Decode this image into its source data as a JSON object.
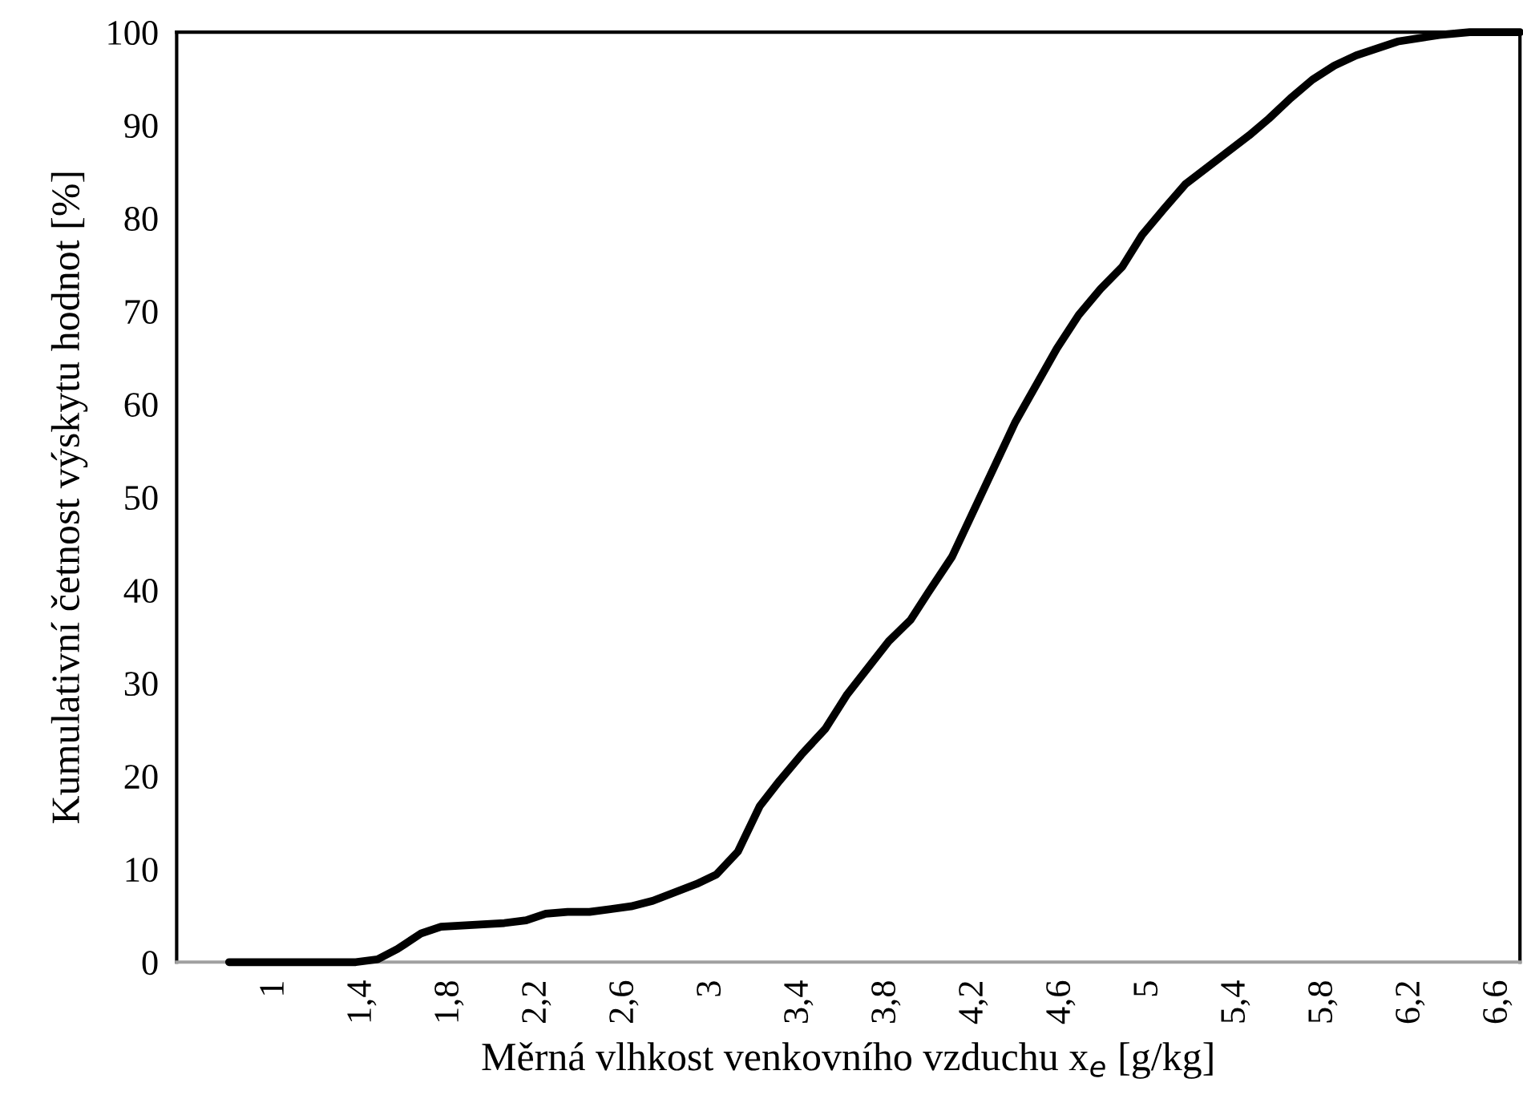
{
  "chart_data": {
    "type": "line",
    "xlabel": "Měrná vlhkost venkovního vzduchu x$_{e}$ [g/kg]",
    "ylabel": "Kumulativní četnost výskytu hodnot [%]",
    "xlim": [
      0.55,
      6.7
    ],
    "xticks": [
      1,
      {
        "value": 1.4,
        "label": "1,4"
      },
      {
        "value": 1.8,
        "label": "1,8"
      },
      {
        "value": 2.2,
        "label": "2,2"
      },
      {
        "value": 2.6,
        "label": "2,6"
      },
      3,
      {
        "value": 3.4,
        "label": "3,4"
      },
      {
        "value": 3.8,
        "label": "3,8"
      },
      {
        "value": 4.2,
        "label": "4,2"
      },
      {
        "value": 4.6,
        "label": "4,6"
      },
      5,
      {
        "value": 5.4,
        "label": "5,4"
      },
      {
        "value": 5.8,
        "label": "5,8"
      },
      {
        "value": 6.2,
        "label": "6,2"
      },
      {
        "value": 6.6,
        "label": "6,6"
      }
    ],
    "ylim": [
      0,
      100
    ],
    "yticks": [
      0,
      10,
      20,
      30,
      40,
      50,
      60,
      70,
      80,
      90,
      100
    ],
    "grid": false,
    "legend": false,
    "marker": "none",
    "line_style": "solid",
    "x": [
      0.79,
      1.37,
      1.47,
      1.56,
      1.67,
      1.76,
      2.05,
      2.15,
      2.24,
      2.34,
      2.44,
      2.63,
      2.73,
      2.83,
      2.93,
      3.02,
      3.12,
      3.22,
      3.31,
      3.41,
      3.52,
      3.62,
      3.81,
      3.91,
      3.99,
      4.1,
      4.2,
      4.39,
      4.58,
      4.68,
      4.78,
      4.88,
      4.97,
      5.07,
      5.17,
      5.46,
      5.55,
      5.65,
      5.75,
      5.85,
      5.95,
      6.14,
      6.33,
      6.47,
      6.7
    ],
    "series": [
      {
        "color": "#000000",
        "values": [
          0,
          0,
          0.3,
          1.4,
          3.1,
          3.8,
          4.2,
          4.5,
          5.2,
          5.4,
          5.4,
          6.0,
          6.6,
          7.5,
          8.4,
          9.4,
          11.9,
          16.8,
          19.5,
          22.3,
          25.1,
          28.8,
          34.5,
          36.8,
          39.7,
          43.6,
          48.6,
          58.1,
          66.0,
          69.6,
          72.4,
          74.8,
          78.2,
          81.0,
          83.7,
          88.9,
          90.7,
          92.9,
          94.9,
          96.4,
          97.5,
          99.0,
          99.7,
          100,
          100
        ]
      }
    ]
  }
}
